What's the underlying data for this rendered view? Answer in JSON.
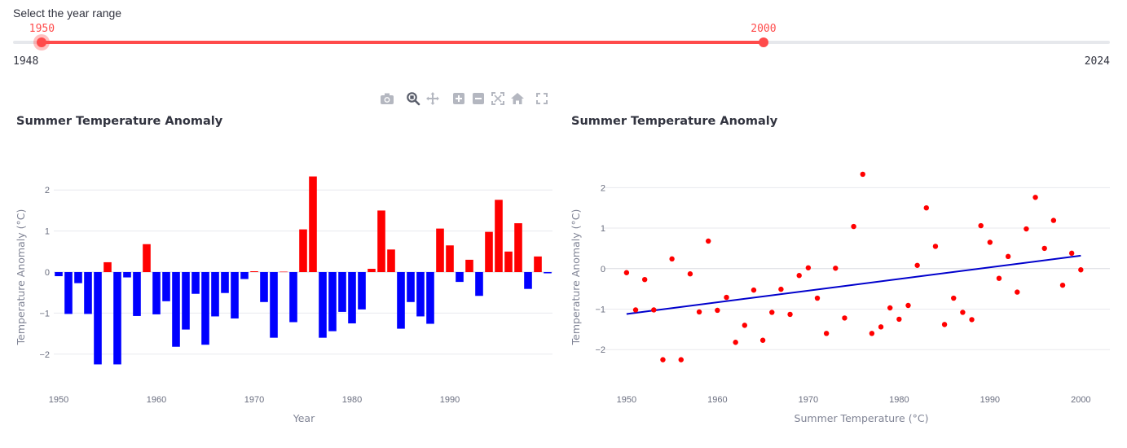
{
  "slider": {
    "label": "Select the year range",
    "min": 1948,
    "max": 2024,
    "value_low": 1950,
    "value_high": 2000,
    "min_label": "1948",
    "max_label": "2024",
    "value_low_label": "1950",
    "value_high_label": "2000",
    "accent_color": "#ff4b4b"
  },
  "toolbar": {
    "icons": [
      "camera-icon",
      "zoom-icon",
      "pan-icon",
      "zoom-in-icon",
      "zoom-out-icon",
      "autoscale-icon",
      "home-icon",
      "fullscreen-icon"
    ],
    "active": "zoom-icon"
  },
  "chart_data": [
    {
      "type": "bar",
      "title": "Summer Temperature Anomaly",
      "xlabel": "Year",
      "ylabel": "Temperature Anomaly (°C)",
      "xlim": [
        1949.5,
        2000.5
      ],
      "ylim": [
        -2.5,
        2.6
      ],
      "xticks": [
        1950,
        1960,
        1970,
        1980,
        1990
      ],
      "yticks": [
        -2,
        -1,
        0,
        1,
        2
      ],
      "positive_color": "#ff0000",
      "negative_color": "#0000ff",
      "grid": true,
      "x": [
        1950,
        1951,
        1952,
        1953,
        1954,
        1955,
        1956,
        1957,
        1958,
        1959,
        1960,
        1961,
        1962,
        1963,
        1964,
        1965,
        1966,
        1967,
        1968,
        1969,
        1970,
        1971,
        1972,
        1973,
        1974,
        1975,
        1976,
        1977,
        1978,
        1979,
        1980,
        1981,
        1982,
        1983,
        1984,
        1985,
        1986,
        1987,
        1988,
        1989,
        1990,
        1991,
        1992,
        1993,
        1994,
        1995,
        1996,
        1997,
        1998,
        1999,
        2000
      ],
      "values": [
        -0.1,
        -1.02,
        -0.27,
        -1.02,
        -2.25,
        0.24,
        -2.25,
        -0.13,
        -1.07,
        0.68,
        -1.03,
        -0.71,
        -1.82,
        -1.4,
        -0.53,
        -1.77,
        -1.08,
        -0.51,
        -1.13,
        -0.17,
        0.02,
        -0.73,
        -1.6,
        0.01,
        -1.22,
        1.04,
        2.33,
        -1.6,
        -1.44,
        -0.97,
        -1.25,
        -0.91,
        0.08,
        1.5,
        0.55,
        -1.38,
        -0.73,
        -1.08,
        -1.26,
        1.06,
        0.65,
        -0.24,
        0.3,
        -0.58,
        0.98,
        1.76,
        0.5,
        1.19,
        -0.41,
        0.38,
        -0.03
      ]
    },
    {
      "type": "scatter",
      "title": "Summer Temperature Anomaly",
      "xlabel": "Summer Temperature (°C)",
      "ylabel": "Temperature Anomaly (°C)",
      "xlim": [
        1947.5,
        2003.2
      ],
      "ylim": [
        -2.68,
        2.55
      ],
      "xticks": [
        1950,
        1960,
        1970,
        1980,
        1990,
        2000
      ],
      "yticks": [
        -2,
        -1,
        0,
        1,
        2
      ],
      "point_color": "#ff0000",
      "trend_color": "#0000cc",
      "grid": true,
      "trendline": {
        "x": [
          1950,
          2000
        ],
        "y": [
          -1.12,
          0.32
        ]
      },
      "x": [
        1950,
        1951,
        1952,
        1953,
        1954,
        1955,
        1956,
        1957,
        1958,
        1959,
        1960,
        1961,
        1962,
        1963,
        1964,
        1965,
        1966,
        1967,
        1968,
        1969,
        1970,
        1971,
        1972,
        1973,
        1974,
        1975,
        1976,
        1977,
        1978,
        1979,
        1980,
        1981,
        1982,
        1983,
        1984,
        1985,
        1986,
        1987,
        1988,
        1989,
        1990,
        1991,
        1992,
        1993,
        1994,
        1995,
        1996,
        1997,
        1998,
        1999,
        2000
      ],
      "y": [
        -0.1,
        -1.02,
        -0.27,
        -1.02,
        -2.25,
        0.24,
        -2.25,
        -0.13,
        -1.07,
        0.68,
        -1.03,
        -0.71,
        -1.82,
        -1.4,
        -0.53,
        -1.77,
        -1.08,
        -0.51,
        -1.13,
        -0.17,
        0.02,
        -0.73,
        -1.6,
        0.01,
        -1.22,
        1.04,
        2.33,
        -1.6,
        -1.44,
        -0.97,
        -1.25,
        -0.91,
        0.08,
        1.5,
        0.55,
        -1.38,
        -0.73,
        -1.08,
        -1.26,
        1.06,
        0.65,
        -0.24,
        0.3,
        -0.58,
        0.98,
        1.76,
        0.5,
        1.19,
        -0.41,
        0.38,
        -0.03
      ]
    }
  ]
}
